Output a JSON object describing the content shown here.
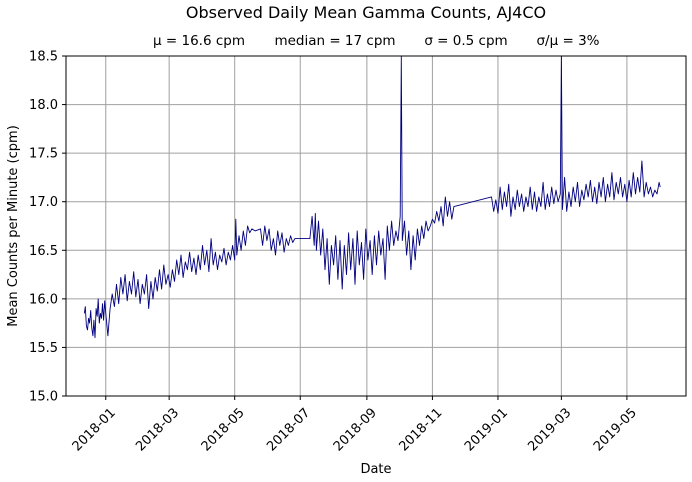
{
  "chart_data": {
    "type": "line",
    "title": "Observed Daily Mean Gamma Counts, AJ4CO",
    "subtitle_parts": [
      "μ = 16.6 cpm",
      "median = 17 cpm",
      "σ = 0.5 cpm",
      "σ/μ = 3%"
    ],
    "xlabel": "Date",
    "ylabel": "Mean Counts per Minute (cpm)",
    "xlim": [
      "2017-11-25",
      "2019-06-25"
    ],
    "ylim": [
      15.0,
      18.5
    ],
    "grid": true,
    "line_color": "#000080",
    "x_ticks": [
      "2018-01",
      "2018-03",
      "2018-05",
      "2018-07",
      "2018-09",
      "2018-11",
      "2019-01",
      "2019-03",
      "2019-05"
    ],
    "y_ticks": [
      "15.0",
      "15.5",
      "16.0",
      "16.5",
      "17.0",
      "17.5",
      "18.0",
      "18.5"
    ],
    "series": [
      {
        "values": [
          [
            "2017-12-12",
            15.85
          ],
          [
            "2017-12-13",
            15.92
          ],
          [
            "2017-12-14",
            15.72
          ],
          [
            "2017-12-15",
            15.68
          ],
          [
            "2017-12-16",
            15.8
          ],
          [
            "2017-12-17",
            15.75
          ],
          [
            "2017-12-18",
            15.88
          ],
          [
            "2017-12-19",
            15.7
          ],
          [
            "2017-12-20",
            15.62
          ],
          [
            "2017-12-21",
            15.78
          ],
          [
            "2017-12-22",
            15.6
          ],
          [
            "2017-12-23",
            15.9
          ],
          [
            "2017-12-24",
            15.82
          ],
          [
            "2017-12-25",
            16.0
          ],
          [
            "2017-12-26",
            15.75
          ],
          [
            "2017-12-27",
            15.85
          ],
          [
            "2017-12-28",
            15.8
          ],
          [
            "2017-12-29",
            15.95
          ],
          [
            "2017-12-30",
            15.78
          ],
          [
            "2017-12-31",
            15.98
          ],
          [
            "2018-01-01",
            15.85
          ],
          [
            "2018-01-03",
            15.62
          ],
          [
            "2018-01-05",
            15.9
          ],
          [
            "2018-01-07",
            16.05
          ],
          [
            "2018-01-09",
            15.92
          ],
          [
            "2018-01-11",
            16.15
          ],
          [
            "2018-01-13",
            15.95
          ],
          [
            "2018-01-15",
            16.22
          ],
          [
            "2018-01-17",
            16.05
          ],
          [
            "2018-01-19",
            16.25
          ],
          [
            "2018-01-21",
            15.98
          ],
          [
            "2018-01-23",
            16.18
          ],
          [
            "2018-01-25",
            16.05
          ],
          [
            "2018-01-27",
            16.28
          ],
          [
            "2018-01-29",
            16.02
          ],
          [
            "2018-01-31",
            16.2
          ],
          [
            "2018-02-02",
            15.95
          ],
          [
            "2018-02-04",
            16.15
          ],
          [
            "2018-02-06",
            16.05
          ],
          [
            "2018-02-08",
            16.25
          ],
          [
            "2018-02-10",
            15.9
          ],
          [
            "2018-02-12",
            16.18
          ],
          [
            "2018-02-14",
            16.0
          ],
          [
            "2018-02-16",
            16.22
          ],
          [
            "2018-02-18",
            16.08
          ],
          [
            "2018-02-20",
            16.3
          ],
          [
            "2018-02-22",
            16.1
          ],
          [
            "2018-02-24",
            16.35
          ],
          [
            "2018-02-26",
            16.15
          ],
          [
            "2018-02-28",
            16.25
          ],
          [
            "2018-03-02",
            16.12
          ],
          [
            "2018-03-04",
            16.3
          ],
          [
            "2018-03-06",
            16.18
          ],
          [
            "2018-03-08",
            16.4
          ],
          [
            "2018-03-10",
            16.25
          ],
          [
            "2018-03-12",
            16.45
          ],
          [
            "2018-03-14",
            16.22
          ],
          [
            "2018-03-16",
            16.38
          ],
          [
            "2018-03-18",
            16.3
          ],
          [
            "2018-03-20",
            16.48
          ],
          [
            "2018-03-22",
            16.28
          ],
          [
            "2018-03-24",
            16.42
          ],
          [
            "2018-03-26",
            16.25
          ],
          [
            "2018-03-28",
            16.45
          ],
          [
            "2018-03-30",
            16.3
          ],
          [
            "2018-04-01",
            16.55
          ],
          [
            "2018-04-03",
            16.35
          ],
          [
            "2018-04-05",
            16.5
          ],
          [
            "2018-04-07",
            16.28
          ],
          [
            "2018-04-09",
            16.62
          ],
          [
            "2018-04-11",
            16.35
          ],
          [
            "2018-04-13",
            16.48
          ],
          [
            "2018-04-15",
            16.3
          ],
          [
            "2018-04-17",
            16.45
          ],
          [
            "2018-04-19",
            16.38
          ],
          [
            "2018-04-21",
            16.52
          ],
          [
            "2018-04-23",
            16.35
          ],
          [
            "2018-04-25",
            16.48
          ],
          [
            "2018-04-27",
            16.4
          ],
          [
            "2018-04-29",
            16.55
          ],
          [
            "2018-05-01",
            16.4
          ],
          [
            "2018-05-02",
            16.82
          ],
          [
            "2018-05-03",
            16.45
          ],
          [
            "2018-05-05",
            16.65
          ],
          [
            "2018-05-07",
            16.5
          ],
          [
            "2018-05-09",
            16.7
          ],
          [
            "2018-05-11",
            16.55
          ],
          [
            "2018-05-13",
            16.75
          ],
          [
            "2018-05-15",
            16.68
          ],
          [
            "2018-05-17",
            16.72
          ],
          [
            "2018-05-20",
            16.7
          ],
          [
            "2018-05-25",
            16.72
          ],
          [
            "2018-05-27",
            16.55
          ],
          [
            "2018-05-29",
            16.75
          ],
          [
            "2018-05-31",
            16.6
          ],
          [
            "2018-06-02",
            16.72
          ],
          [
            "2018-06-04",
            16.5
          ],
          [
            "2018-06-06",
            16.62
          ],
          [
            "2018-06-08",
            16.45
          ],
          [
            "2018-06-10",
            16.7
          ],
          [
            "2018-06-12",
            16.55
          ],
          [
            "2018-06-14",
            16.68
          ],
          [
            "2018-06-16",
            16.48
          ],
          [
            "2018-06-18",
            16.62
          ],
          [
            "2018-06-20",
            16.55
          ],
          [
            "2018-06-22",
            16.65
          ],
          [
            "2018-06-24",
            16.58
          ],
          [
            "2018-06-26",
            16.62
          ],
          [
            "2018-07-10",
            16.62
          ],
          [
            "2018-07-12",
            16.85
          ],
          [
            "2018-07-14",
            16.55
          ],
          [
            "2018-07-15",
            16.88
          ],
          [
            "2018-07-16",
            16.5
          ],
          [
            "2018-07-18",
            16.8
          ],
          [
            "2018-07-20",
            16.45
          ],
          [
            "2018-07-22",
            16.72
          ],
          [
            "2018-07-24",
            16.3
          ],
          [
            "2018-07-26",
            16.62
          ],
          [
            "2018-07-28",
            16.15
          ],
          [
            "2018-07-30",
            16.55
          ],
          [
            "2018-08-01",
            16.35
          ],
          [
            "2018-08-03",
            16.65
          ],
          [
            "2018-08-05",
            16.2
          ],
          [
            "2018-08-07",
            16.6
          ],
          [
            "2018-08-09",
            16.1
          ],
          [
            "2018-08-11",
            16.55
          ],
          [
            "2018-08-13",
            16.25
          ],
          [
            "2018-08-15",
            16.68
          ],
          [
            "2018-08-17",
            16.3
          ],
          [
            "2018-08-19",
            16.62
          ],
          [
            "2018-08-21",
            16.15
          ],
          [
            "2018-08-23",
            16.7
          ],
          [
            "2018-08-25",
            16.35
          ],
          [
            "2018-08-27",
            16.58
          ],
          [
            "2018-08-29",
            16.2
          ],
          [
            "2018-08-31",
            16.72
          ],
          [
            "2018-09-02",
            16.4
          ],
          [
            "2018-09-04",
            16.6
          ],
          [
            "2018-09-06",
            16.25
          ],
          [
            "2018-09-08",
            16.65
          ],
          [
            "2018-09-10",
            16.35
          ],
          [
            "2018-09-12",
            16.7
          ],
          [
            "2018-09-14",
            16.45
          ],
          [
            "2018-09-16",
            16.62
          ],
          [
            "2018-09-18",
            16.2
          ],
          [
            "2018-09-20",
            16.75
          ],
          [
            "2018-09-22",
            16.5
          ],
          [
            "2018-09-24",
            16.8
          ],
          [
            "2018-09-26",
            16.55
          ],
          [
            "2018-09-28",
            16.7
          ],
          [
            "2018-09-30",
            16.6
          ],
          [
            "2018-10-02",
            16.85
          ],
          [
            "2018-10-03",
            18.5
          ],
          [
            "2018-10-04",
            16.6
          ],
          [
            "2018-10-06",
            16.8
          ],
          [
            "2018-10-08",
            16.45
          ],
          [
            "2018-10-10",
            16.7
          ],
          [
            "2018-10-12",
            16.3
          ],
          [
            "2018-10-14",
            16.65
          ],
          [
            "2018-10-16",
            16.4
          ],
          [
            "2018-10-18",
            16.72
          ],
          [
            "2018-10-20",
            16.55
          ],
          [
            "2018-10-22",
            16.75
          ],
          [
            "2018-10-24",
            16.62
          ],
          [
            "2018-10-26",
            16.8
          ],
          [
            "2018-10-28",
            16.7
          ],
          [
            "2018-10-30",
            16.75
          ],
          [
            "2018-11-01",
            16.82
          ],
          [
            "2018-11-03",
            16.78
          ],
          [
            "2018-11-05",
            16.9
          ],
          [
            "2018-11-07",
            16.8
          ],
          [
            "2018-11-09",
            16.95
          ],
          [
            "2018-11-11",
            16.75
          ],
          [
            "2018-11-13",
            17.05
          ],
          [
            "2018-11-15",
            16.85
          ],
          [
            "2018-11-17",
            17.0
          ],
          [
            "2018-11-19",
            16.82
          ],
          [
            "2018-11-21",
            16.95
          ],
          [
            "2018-12-26",
            17.05
          ],
          [
            "2018-12-28",
            16.9
          ],
          [
            "2018-12-30",
            17.02
          ],
          [
            "2019-01-01",
            16.88
          ],
          [
            "2019-01-03",
            17.15
          ],
          [
            "2019-01-05",
            16.92
          ],
          [
            "2019-01-07",
            17.1
          ],
          [
            "2019-01-09",
            16.95
          ],
          [
            "2019-01-11",
            17.18
          ],
          [
            "2019-01-13",
            16.85
          ],
          [
            "2019-01-15",
            17.05
          ],
          [
            "2019-01-17",
            16.92
          ],
          [
            "2019-01-19",
            17.12
          ],
          [
            "2019-01-21",
            16.95
          ],
          [
            "2019-01-23",
            17.08
          ],
          [
            "2019-01-25",
            16.9
          ],
          [
            "2019-01-27",
            17.05
          ],
          [
            "2019-01-29",
            16.95
          ],
          [
            "2019-01-31",
            17.15
          ],
          [
            "2019-02-02",
            16.92
          ],
          [
            "2019-02-04",
            17.1
          ],
          [
            "2019-02-06",
            16.9
          ],
          [
            "2019-02-08",
            17.05
          ],
          [
            "2019-02-10",
            16.95
          ],
          [
            "2019-02-12",
            17.2
          ],
          [
            "2019-02-14",
            16.92
          ],
          [
            "2019-02-16",
            17.08
          ],
          [
            "2019-02-18",
            16.95
          ],
          [
            "2019-02-20",
            17.15
          ],
          [
            "2019-02-22",
            16.98
          ],
          [
            "2019-02-24",
            17.12
          ],
          [
            "2019-02-26",
            17.0
          ],
          [
            "2019-02-28",
            17.08
          ],
          [
            "2019-03-01",
            18.5
          ],
          [
            "2019-03-02",
            16.92
          ],
          [
            "2019-03-04",
            17.25
          ],
          [
            "2019-03-06",
            16.9
          ],
          [
            "2019-03-08",
            17.1
          ],
          [
            "2019-03-10",
            16.95
          ],
          [
            "2019-03-12",
            17.15
          ],
          [
            "2019-03-14",
            17.0
          ],
          [
            "2019-03-16",
            17.2
          ],
          [
            "2019-03-18",
            16.95
          ],
          [
            "2019-03-20",
            17.12
          ],
          [
            "2019-03-22",
            17.02
          ],
          [
            "2019-03-24",
            17.18
          ],
          [
            "2019-03-26",
            17.05
          ],
          [
            "2019-03-28",
            17.22
          ],
          [
            "2019-03-30",
            17.0
          ],
          [
            "2019-04-01",
            17.15
          ],
          [
            "2019-04-03",
            16.98
          ],
          [
            "2019-04-05",
            17.2
          ],
          [
            "2019-04-07",
            17.05
          ],
          [
            "2019-04-09",
            17.25
          ],
          [
            "2019-04-11",
            17.0
          ],
          [
            "2019-04-13",
            17.18
          ],
          [
            "2019-04-15",
            17.05
          ],
          [
            "2019-04-17",
            17.3
          ],
          [
            "2019-04-19",
            17.02
          ],
          [
            "2019-04-21",
            17.2
          ],
          [
            "2019-04-23",
            17.08
          ],
          [
            "2019-04-25",
            17.25
          ],
          [
            "2019-04-27",
            17.05
          ],
          [
            "2019-04-29",
            17.18
          ],
          [
            "2019-05-01",
            17.0
          ],
          [
            "2019-05-03",
            17.22
          ],
          [
            "2019-05-05",
            17.05
          ],
          [
            "2019-05-07",
            17.3
          ],
          [
            "2019-05-09",
            17.08
          ],
          [
            "2019-05-11",
            17.25
          ],
          [
            "2019-05-13",
            17.1
          ],
          [
            "2019-05-15",
            17.42
          ],
          [
            "2019-05-17",
            17.05
          ],
          [
            "2019-05-19",
            17.2
          ],
          [
            "2019-05-21",
            17.08
          ],
          [
            "2019-05-23",
            17.15
          ],
          [
            "2019-05-25",
            17.05
          ],
          [
            "2019-05-27",
            17.12
          ],
          [
            "2019-05-29",
            17.08
          ],
          [
            "2019-05-31",
            17.2
          ],
          [
            "2019-06-01",
            17.15
          ]
        ]
      }
    ]
  }
}
